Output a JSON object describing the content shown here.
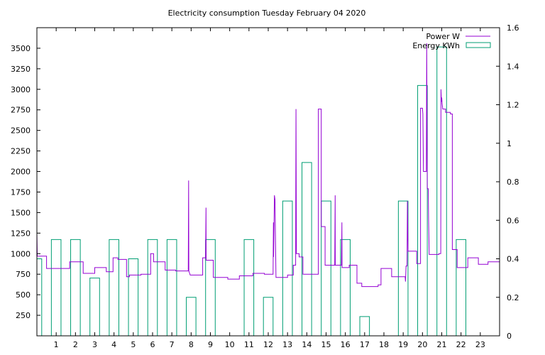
{
  "chart_data": {
    "type": "line",
    "title": "Electricity consumption Tuesday February 04 2020",
    "xlabel": "",
    "ylabel": "",
    "y2label": "",
    "xlim": [
      0,
      24
    ],
    "ylim": [
      0,
      3750
    ],
    "y2lim": [
      0,
      1.6
    ],
    "x_ticks": [
      1,
      2,
      3,
      4,
      5,
      6,
      7,
      8,
      9,
      10,
      11,
      12,
      13,
      14,
      15,
      16,
      17,
      18,
      19,
      20,
      21,
      22,
      23
    ],
    "y_ticks": [
      250,
      500,
      750,
      1000,
      1250,
      1500,
      1750,
      2000,
      2250,
      2500,
      2750,
      3000,
      3250,
      3500
    ],
    "y2_ticks": [
      0,
      0.2,
      0.4,
      0.6,
      0.8,
      1,
      1.2,
      1.4,
      1.6
    ],
    "grid": false,
    "legend_position": "top-right",
    "series": [
      {
        "name": "Power W",
        "axis": "y",
        "color": "#9400d3",
        "points": [
          [
            0.0,
            1250
          ],
          [
            0.02,
            970
          ],
          [
            0.5,
            970
          ],
          [
            0.5,
            820
          ],
          [
            1.7,
            820
          ],
          [
            1.7,
            900
          ],
          [
            2.4,
            900
          ],
          [
            2.4,
            760
          ],
          [
            3.0,
            760
          ],
          [
            3.0,
            830
          ],
          [
            3.6,
            830
          ],
          [
            3.6,
            780
          ],
          [
            3.95,
            780
          ],
          [
            3.95,
            950
          ],
          [
            4.2,
            950
          ],
          [
            4.2,
            930
          ],
          [
            4.65,
            930
          ],
          [
            4.65,
            720
          ],
          [
            4.8,
            720
          ],
          [
            4.8,
            740
          ],
          [
            5.4,
            740
          ],
          [
            5.4,
            750
          ],
          [
            5.9,
            750
          ],
          [
            5.9,
            1000
          ],
          [
            6.05,
            1000
          ],
          [
            6.05,
            900
          ],
          [
            6.65,
            900
          ],
          [
            6.65,
            800
          ],
          [
            7.2,
            800
          ],
          [
            7.2,
            790
          ],
          [
            7.85,
            790
          ],
          [
            7.87,
            1890
          ],
          [
            7.88,
            790
          ],
          [
            7.95,
            740
          ],
          [
            8.6,
            740
          ],
          [
            8.6,
            950
          ],
          [
            8.75,
            950
          ],
          [
            8.77,
            1560
          ],
          [
            8.78,
            920
          ],
          [
            9.15,
            920
          ],
          [
            9.15,
            710
          ],
          [
            9.9,
            710
          ],
          [
            9.9,
            690
          ],
          [
            10.5,
            690
          ],
          [
            10.5,
            730
          ],
          [
            11.2,
            730
          ],
          [
            11.2,
            760
          ],
          [
            11.8,
            760
          ],
          [
            11.8,
            750
          ],
          [
            12.25,
            750
          ],
          [
            12.27,
            1380
          ],
          [
            12.28,
            960
          ],
          [
            12.32,
            1710
          ],
          [
            12.35,
            1660
          ],
          [
            12.4,
            710
          ],
          [
            13.0,
            710
          ],
          [
            13.0,
            740
          ],
          [
            13.3,
            740
          ],
          [
            13.3,
            860
          ],
          [
            13.42,
            860
          ],
          [
            13.44,
            2760
          ],
          [
            13.46,
            1000
          ],
          [
            13.6,
            1000
          ],
          [
            13.6,
            960
          ],
          [
            13.8,
            960
          ],
          [
            13.8,
            750
          ],
          [
            14.6,
            750
          ],
          [
            14.6,
            2760
          ],
          [
            14.75,
            2760
          ],
          [
            14.75,
            1330
          ],
          [
            14.95,
            1330
          ],
          [
            14.95,
            860
          ],
          [
            15.45,
            860
          ],
          [
            15.47,
            1710
          ],
          [
            15.48,
            860
          ],
          [
            15.8,
            860
          ],
          [
            15.82,
            1380
          ],
          [
            15.83,
            830
          ],
          [
            16.2,
            830
          ],
          [
            16.2,
            860
          ],
          [
            16.6,
            860
          ],
          [
            16.6,
            640
          ],
          [
            16.85,
            640
          ],
          [
            16.85,
            600
          ],
          [
            17.7,
            600
          ],
          [
            17.7,
            620
          ],
          [
            17.85,
            620
          ],
          [
            17.85,
            820
          ],
          [
            18.4,
            820
          ],
          [
            18.4,
            720
          ],
          [
            19.1,
            720
          ],
          [
            19.12,
            660
          ],
          [
            19.15,
            850
          ],
          [
            19.2,
            850
          ],
          [
            19.22,
            1640
          ],
          [
            19.25,
            1030
          ],
          [
            19.7,
            1030
          ],
          [
            19.7,
            880
          ],
          [
            19.9,
            880
          ],
          [
            19.9,
            2770
          ],
          [
            20.0,
            2770
          ],
          [
            20.02,
            2700
          ],
          [
            20.05,
            2000
          ],
          [
            20.2,
            2000
          ],
          [
            20.22,
            3560
          ],
          [
            20.25,
            1790
          ],
          [
            20.3,
            1790
          ],
          [
            20.32,
            1400
          ],
          [
            20.35,
            990
          ],
          [
            20.85,
            990
          ],
          [
            20.85,
            1000
          ],
          [
            20.95,
            1000
          ],
          [
            20.96,
            3000
          ],
          [
            20.98,
            2850
          ],
          [
            21.0,
            2900
          ],
          [
            21.02,
            2830
          ],
          [
            21.05,
            2760
          ],
          [
            21.2,
            2760
          ],
          [
            21.2,
            2720
          ],
          [
            21.45,
            2720
          ],
          [
            21.45,
            2700
          ],
          [
            21.55,
            2700
          ],
          [
            21.55,
            1050
          ],
          [
            21.8,
            1050
          ],
          [
            21.8,
            830
          ],
          [
            22.35,
            830
          ],
          [
            22.35,
            950
          ],
          [
            22.9,
            950
          ],
          [
            22.9,
            870
          ],
          [
            23.4,
            870
          ],
          [
            23.4,
            900
          ],
          [
            24.0,
            900
          ]
        ]
      },
      {
        "name": "Energy KWh",
        "axis": "y2",
        "color": "#009e73",
        "bars": [
          {
            "from": 0.0,
            "to": 0.25,
            "value": 0.4
          },
          {
            "from": 0.75,
            "to": 1.25,
            "value": 0.5
          },
          {
            "from": 1.75,
            "to": 2.25,
            "value": 0.5
          },
          {
            "from": 2.75,
            "to": 3.25,
            "value": 0.3
          },
          {
            "from": 3.75,
            "to": 4.25,
            "value": 0.5
          },
          {
            "from": 4.75,
            "to": 5.25,
            "value": 0.4
          },
          {
            "from": 5.75,
            "to": 6.25,
            "value": 0.5
          },
          {
            "from": 6.75,
            "to": 7.25,
            "value": 0.5
          },
          {
            "from": 7.75,
            "to": 8.25,
            "value": 0.2
          },
          {
            "from": 8.75,
            "to": 9.25,
            "value": 0.5
          },
          {
            "from": 10.75,
            "to": 11.25,
            "value": 0.5
          },
          {
            "from": 11.75,
            "to": 12.25,
            "value": 0.2
          },
          {
            "from": 12.75,
            "to": 13.25,
            "value": 0.7
          },
          {
            "from": 13.75,
            "to": 14.25,
            "value": 0.9
          },
          {
            "from": 14.75,
            "to": 15.25,
            "value": 0.7
          },
          {
            "from": 15.75,
            "to": 16.25,
            "value": 0.5
          },
          {
            "from": 16.75,
            "to": 17.25,
            "value": 0.1
          },
          {
            "from": 18.75,
            "to": 19.25,
            "value": 0.7
          },
          {
            "from": 19.75,
            "to": 20.25,
            "value": 1.3
          },
          {
            "from": 20.75,
            "to": 21.25,
            "value": 1.5
          },
          {
            "from": 21.75,
            "to": 22.25,
            "value": 0.5
          }
        ]
      }
    ]
  }
}
